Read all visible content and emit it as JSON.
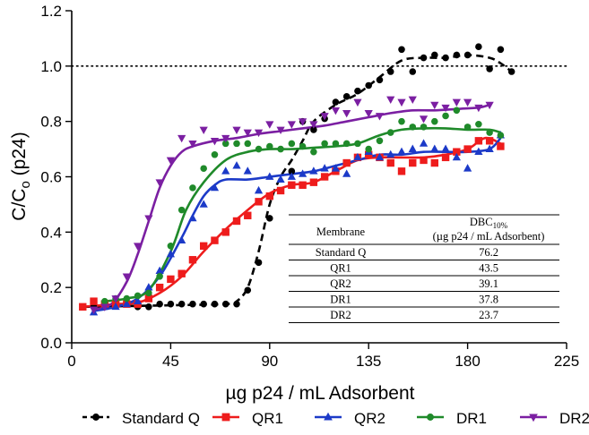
{
  "chart_data": {
    "type": "scatter",
    "xlabel": "µg p24 / mL Adsorbent",
    "ylabel": "C/C",
    "ylabel_sub": "o",
    "ylabel_suffix": " (p24)",
    "xlim": [
      0,
      225
    ],
    "ylim": [
      0,
      1.2
    ],
    "x_ticks": [
      0,
      45,
      90,
      135,
      180,
      225
    ],
    "y_ticks": [
      0.0,
      0.2,
      0.4,
      0.6,
      0.8,
      1.0,
      1.2
    ],
    "reference_line": 1.0,
    "legend_position": "bottom",
    "series": [
      {
        "name": "Standard Q",
        "color": "#000000",
        "marker": "circle",
        "line": "dashed",
        "points": [
          [
            10,
            0.13
          ],
          [
            15,
            0.135
          ],
          [
            20,
            0.14
          ],
          [
            25,
            0.14
          ],
          [
            30,
            0.13
          ],
          [
            35,
            0.13
          ],
          [
            40,
            0.14
          ],
          [
            45,
            0.14
          ],
          [
            50,
            0.14
          ],
          [
            55,
            0.14
          ],
          [
            60,
            0.14
          ],
          [
            65,
            0.14
          ],
          [
            70,
            0.14
          ],
          [
            75,
            0.14
          ],
          [
            80,
            0.19
          ],
          [
            85,
            0.29
          ],
          [
            90,
            0.45
          ],
          [
            95,
            0.55
          ],
          [
            100,
            0.62
          ],
          [
            105,
            0.8
          ],
          [
            110,
            0.77
          ],
          [
            115,
            0.81
          ],
          [
            120,
            0.87
          ],
          [
            125,
            0.89
          ],
          [
            130,
            0.91
          ],
          [
            135,
            0.93
          ],
          [
            140,
            0.95
          ],
          [
            145,
            0.98
          ],
          [
            150,
            1.06
          ],
          [
            155,
            0.98
          ],
          [
            160,
            1.03
          ],
          [
            165,
            1.04
          ],
          [
            170,
            1.03
          ],
          [
            175,
            1.04
          ],
          [
            180,
            1.04
          ],
          [
            185,
            1.07
          ],
          [
            190,
            0.99
          ],
          [
            195,
            1.06
          ],
          [
            200,
            0.98
          ]
        ],
        "curve": [
          [
            5,
            0.13
          ],
          [
            40,
            0.135
          ],
          [
            70,
            0.14
          ],
          [
            75,
            0.15
          ],
          [
            80,
            0.2
          ],
          [
            85,
            0.33
          ],
          [
            90,
            0.5
          ],
          [
            95,
            0.6
          ],
          [
            100,
            0.66
          ],
          [
            105,
            0.73
          ],
          [
            110,
            0.8
          ],
          [
            120,
            0.86
          ],
          [
            130,
            0.9
          ],
          [
            140,
            0.96
          ],
          [
            150,
            1.02
          ],
          [
            160,
            1.03
          ],
          [
            170,
            1.03
          ],
          [
            180,
            1.04
          ],
          [
            190,
            1.03
          ],
          [
            195,
            1.01
          ],
          [
            200,
            0.98
          ]
        ]
      },
      {
        "name": "QR1",
        "color": "#ee1c1c",
        "marker": "square",
        "line": "solid",
        "points": [
          [
            5,
            0.13
          ],
          [
            10,
            0.15
          ],
          [
            15,
            0.14
          ],
          [
            20,
            0.14
          ],
          [
            25,
            0.14
          ],
          [
            30,
            0.14
          ],
          [
            35,
            0.16
          ],
          [
            40,
            0.2
          ],
          [
            45,
            0.23
          ],
          [
            50,
            0.25
          ],
          [
            55,
            0.3
          ],
          [
            60,
            0.35
          ],
          [
            65,
            0.37
          ],
          [
            70,
            0.4
          ],
          [
            75,
            0.44
          ],
          [
            80,
            0.46
          ],
          [
            85,
            0.51
          ],
          [
            90,
            0.53
          ],
          [
            95,
            0.55
          ],
          [
            100,
            0.57
          ],
          [
            105,
            0.57
          ],
          [
            110,
            0.58
          ],
          [
            115,
            0.6
          ],
          [
            120,
            0.62
          ],
          [
            125,
            0.65
          ],
          [
            130,
            0.67
          ],
          [
            135,
            0.68
          ],
          [
            140,
            0.67
          ],
          [
            145,
            0.65
          ],
          [
            150,
            0.62
          ],
          [
            155,
            0.65
          ],
          [
            160,
            0.66
          ],
          [
            165,
            0.65
          ],
          [
            170,
            0.67
          ],
          [
            175,
            0.69
          ],
          [
            180,
            0.7
          ],
          [
            185,
            0.73
          ],
          [
            190,
            0.73
          ],
          [
            195,
            0.71
          ]
        ],
        "curve": [
          [
            5,
            0.13
          ],
          [
            20,
            0.14
          ],
          [
            30,
            0.145
          ],
          [
            40,
            0.18
          ],
          [
            50,
            0.24
          ],
          [
            60,
            0.33
          ],
          [
            70,
            0.41
          ],
          [
            80,
            0.48
          ],
          [
            90,
            0.54
          ],
          [
            100,
            0.57
          ],
          [
            110,
            0.58
          ],
          [
            120,
            0.62
          ],
          [
            130,
            0.66
          ],
          [
            140,
            0.67
          ],
          [
            150,
            0.67
          ],
          [
            160,
            0.67
          ],
          [
            170,
            0.68
          ],
          [
            180,
            0.7
          ],
          [
            188,
            0.74
          ],
          [
            195,
            0.72
          ]
        ]
      },
      {
        "name": "QR2",
        "color": "#1c3ac8",
        "marker": "triangle-up",
        "line": "solid",
        "points": [
          [
            10,
            0.11
          ],
          [
            15,
            0.13
          ],
          [
            20,
            0.13
          ],
          [
            25,
            0.14
          ],
          [
            30,
            0.15
          ],
          [
            35,
            0.2
          ],
          [
            40,
            0.26
          ],
          [
            45,
            0.32
          ],
          [
            50,
            0.37
          ],
          [
            55,
            0.45
          ],
          [
            60,
            0.5
          ],
          [
            65,
            0.56
          ],
          [
            70,
            0.62
          ],
          [
            75,
            0.64
          ],
          [
            80,
            0.62
          ],
          [
            85,
            0.55
          ],
          [
            90,
            0.6
          ],
          [
            95,
            0.59
          ],
          [
            100,
            0.6
          ],
          [
            105,
            0.61
          ],
          [
            110,
            0.62
          ],
          [
            115,
            0.63
          ],
          [
            120,
            0.63
          ],
          [
            125,
            0.61
          ],
          [
            130,
            0.67
          ],
          [
            135,
            0.69
          ],
          [
            140,
            0.67
          ],
          [
            145,
            0.68
          ],
          [
            150,
            0.69
          ],
          [
            155,
            0.7
          ],
          [
            160,
            0.72
          ],
          [
            165,
            0.7
          ],
          [
            170,
            0.7
          ],
          [
            175,
            0.67
          ],
          [
            180,
            0.63
          ],
          [
            185,
            0.69
          ],
          [
            190,
            0.7
          ],
          [
            195,
            0.75
          ]
        ],
        "curve": [
          [
            10,
            0.115
          ],
          [
            20,
            0.13
          ],
          [
            30,
            0.16
          ],
          [
            40,
            0.24
          ],
          [
            50,
            0.38
          ],
          [
            55,
            0.46
          ],
          [
            60,
            0.53
          ],
          [
            65,
            0.57
          ],
          [
            70,
            0.59
          ],
          [
            80,
            0.59
          ],
          [
            90,
            0.6
          ],
          [
            100,
            0.61
          ],
          [
            110,
            0.62
          ],
          [
            120,
            0.64
          ],
          [
            130,
            0.66
          ],
          [
            140,
            0.68
          ],
          [
            150,
            0.68
          ],
          [
            160,
            0.69
          ],
          [
            170,
            0.69
          ],
          [
            180,
            0.69
          ],
          [
            190,
            0.7
          ],
          [
            195,
            0.74
          ]
        ]
      },
      {
        "name": "DR1",
        "color": "#1f8a2a",
        "marker": "circle",
        "line": "solid",
        "points": [
          [
            15,
            0.15
          ],
          [
            20,
            0.16
          ],
          [
            25,
            0.16
          ],
          [
            30,
            0.17
          ],
          [
            35,
            0.18
          ],
          [
            40,
            0.24
          ],
          [
            45,
            0.35
          ],
          [
            50,
            0.48
          ],
          [
            55,
            0.56
          ],
          [
            60,
            0.63
          ],
          [
            65,
            0.68
          ],
          [
            70,
            0.72
          ],
          [
            75,
            0.72
          ],
          [
            80,
            0.72
          ],
          [
            85,
            0.7
          ],
          [
            90,
            0.71
          ],
          [
            95,
            0.7
          ],
          [
            100,
            0.72
          ],
          [
            105,
            0.71
          ],
          [
            110,
            0.69
          ],
          [
            115,
            0.72
          ],
          [
            120,
            0.72
          ],
          [
            125,
            0.72
          ],
          [
            130,
            0.72
          ],
          [
            135,
            0.7
          ],
          [
            140,
            0.73
          ],
          [
            145,
            0.76
          ],
          [
            150,
            0.8
          ],
          [
            155,
            0.78
          ],
          [
            160,
            0.78
          ],
          [
            165,
            0.8
          ],
          [
            170,
            0.82
          ],
          [
            175,
            0.84
          ],
          [
            180,
            0.78
          ],
          [
            185,
            0.79
          ],
          [
            190,
            0.76
          ],
          [
            195,
            0.75
          ]
        ],
        "curve": [
          [
            15,
            0.15
          ],
          [
            25,
            0.16
          ],
          [
            35,
            0.19
          ],
          [
            45,
            0.33
          ],
          [
            52,
            0.48
          ],
          [
            60,
            0.58
          ],
          [
            70,
            0.66
          ],
          [
            80,
            0.69
          ],
          [
            90,
            0.7
          ],
          [
            100,
            0.7
          ],
          [
            110,
            0.705
          ],
          [
            120,
            0.71
          ],
          [
            130,
            0.72
          ],
          [
            140,
            0.75
          ],
          [
            150,
            0.77
          ],
          [
            160,
            0.775
          ],
          [
            170,
            0.775
          ],
          [
            180,
            0.77
          ],
          [
            190,
            0.77
          ],
          [
            195,
            0.76
          ]
        ]
      },
      {
        "name": "DR2",
        "color": "#7b1fa2",
        "marker": "triangle-down",
        "line": "solid",
        "points": [
          [
            10,
            0.12
          ],
          [
            15,
            0.13
          ],
          [
            20,
            0.16
          ],
          [
            25,
            0.24
          ],
          [
            30,
            0.35
          ],
          [
            35,
            0.45
          ],
          [
            40,
            0.58
          ],
          [
            45,
            0.66
          ],
          [
            50,
            0.74
          ],
          [
            55,
            0.72
          ],
          [
            60,
            0.77
          ],
          [
            65,
            0.73
          ],
          [
            70,
            0.74
          ],
          [
            75,
            0.77
          ],
          [
            80,
            0.76
          ],
          [
            85,
            0.76
          ],
          [
            90,
            0.79
          ],
          [
            95,
            0.77
          ],
          [
            100,
            0.79
          ],
          [
            105,
            0.8
          ],
          [
            110,
            0.79
          ],
          [
            115,
            0.82
          ],
          [
            120,
            0.84
          ],
          [
            125,
            0.83
          ],
          [
            130,
            0.87
          ],
          [
            135,
            0.83
          ],
          [
            140,
            0.82
          ],
          [
            145,
            0.88
          ],
          [
            150,
            0.87
          ],
          [
            155,
            0.88
          ],
          [
            160,
            0.81
          ],
          [
            165,
            0.86
          ],
          [
            170,
            0.85
          ],
          [
            175,
            0.87
          ],
          [
            180,
            0.87
          ],
          [
            185,
            0.85
          ],
          [
            190,
            0.86
          ]
        ],
        "curve": [
          [
            10,
            0.12
          ],
          [
            18,
            0.14
          ],
          [
            25,
            0.22
          ],
          [
            30,
            0.32
          ],
          [
            35,
            0.44
          ],
          [
            40,
            0.56
          ],
          [
            45,
            0.64
          ],
          [
            50,
            0.69
          ],
          [
            55,
            0.71
          ],
          [
            65,
            0.73
          ],
          [
            75,
            0.74
          ],
          [
            85,
            0.755
          ],
          [
            95,
            0.765
          ],
          [
            105,
            0.775
          ],
          [
            115,
            0.785
          ],
          [
            125,
            0.8
          ],
          [
            135,
            0.815
          ],
          [
            145,
            0.83
          ],
          [
            155,
            0.84
          ],
          [
            165,
            0.84
          ],
          [
            175,
            0.845
          ],
          [
            185,
            0.85
          ],
          [
            190,
            0.86
          ]
        ]
      }
    ]
  },
  "table": {
    "header": {
      "col1": "Membrane",
      "col2_line1": "DBC",
      "col2_sub": "10%",
      "col2_line2": "(µg p24 / mL Adsorbent)"
    },
    "rows": [
      {
        "membrane": "Standard Q",
        "dbc": "76.2"
      },
      {
        "membrane": "QR1",
        "dbc": "43.5"
      },
      {
        "membrane": "QR2",
        "dbc": "39.1"
      },
      {
        "membrane": "DR1",
        "dbc": "37.8"
      },
      {
        "membrane": "DR2",
        "dbc": "23.7"
      }
    ]
  }
}
